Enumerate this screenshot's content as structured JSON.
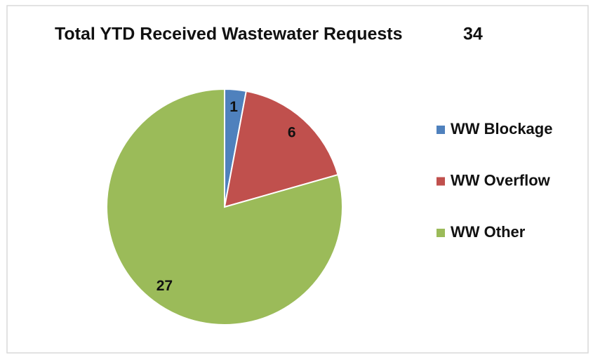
{
  "chart_data": {
    "type": "pie",
    "title": "Total YTD Received Wastewater Requests",
    "total": 34,
    "categories": [
      "WW Blockage",
      "WW Overflow",
      "WW Other"
    ],
    "values": [
      1,
      6,
      27
    ],
    "colors": [
      "#4f81bd",
      "#c0504d",
      "#9bbb59"
    ],
    "legend": "right"
  }
}
